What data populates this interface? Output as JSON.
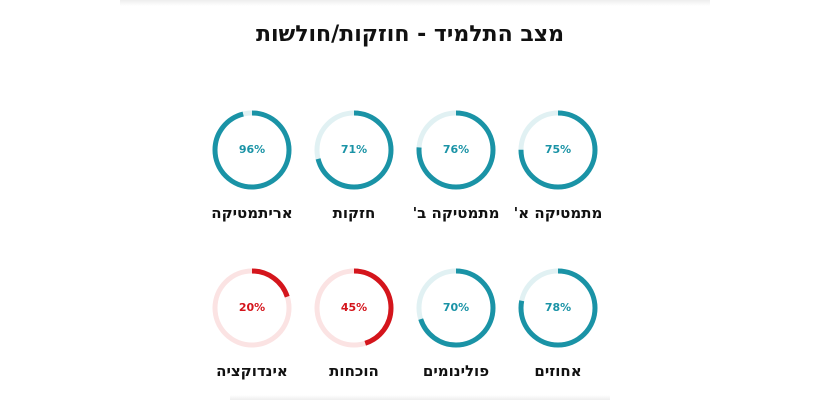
{
  "title": "מצב התלמיד - חוזקות/חולשות",
  "colors": {
    "strong": "#1a93a6",
    "strong_track": "#e1f1f3",
    "weak": "#d4151c",
    "weak_track": "#fbe3e3"
  },
  "topics": [
    {
      "label": "מתמטיקה א'",
      "percent": 75,
      "percent_text": "75%",
      "status": "strong"
    },
    {
      "label": "מתמטיקה ב'",
      "percent": 76,
      "percent_text": "76%",
      "status": "strong"
    },
    {
      "label": "חזקות",
      "percent": 71,
      "percent_text": "71%",
      "status": "strong"
    },
    {
      "label": "אריתמטיקה",
      "percent": 96,
      "percent_text": "96%",
      "status": "strong"
    },
    {
      "label": "אחוזים",
      "percent": 78,
      "percent_text": "78%",
      "status": "strong"
    },
    {
      "label": "פולינומים",
      "percent": 70,
      "percent_text": "70%",
      "status": "strong"
    },
    {
      "label": "הוכחות",
      "percent": 45,
      "percent_text": "45%",
      "status": "weak"
    },
    {
      "label": "אינדוקציה",
      "percent": 20,
      "percent_text": "20%",
      "status": "weak"
    }
  ]
}
